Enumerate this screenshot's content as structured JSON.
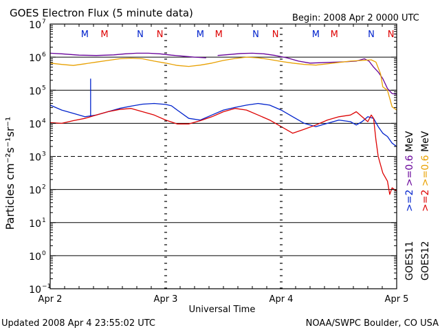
{
  "title": "GOES Electron Flux (5 minute data)",
  "begin_label": "Begin: 2008 Apr 2 0000 UTC",
  "updated_label": "Updated 2008 Apr  4 23:55:02 UTC",
  "credit_label": "NOAA/SWPC Boulder, CO USA",
  "colors": {
    "goes11_2mev": "#0022cc",
    "goes11_06mev": "#660099",
    "goes12_2mev": "#dd0000",
    "goes12_06mev": "#e8a000",
    "frame": "#000000"
  },
  "chart_data": {
    "type": "line",
    "title": "GOES Electron Flux (5 minute data)",
    "xlabel": "Universal Time",
    "ylabel": "Particles cm⁻²s⁻¹sr⁻¹",
    "yscale": "log",
    "ylim_exp": [
      -1,
      7
    ],
    "xlim_days": [
      0,
      3
    ],
    "x_tick_labels": [
      "Apr 2",
      "Apr 3",
      "Apr 4",
      "Apr 5"
    ],
    "y_tick_labels": [
      {
        "exp": 7,
        "base": "10",
        "sup": "7"
      },
      {
        "exp": 6,
        "base": "10",
        "sup": "6"
      },
      {
        "exp": 5,
        "base": "10",
        "sup": "5"
      },
      {
        "exp": 4,
        "base": "10",
        "sup": "4"
      },
      {
        "exp": 3,
        "base": "10",
        "sup": "3"
      },
      {
        "exp": 2,
        "base": "10",
        "sup": "2"
      },
      {
        "exp": 1,
        "base": "10",
        "sup": "1"
      },
      {
        "exp": 0,
        "base": "10",
        "sup": "0"
      },
      {
        "exp": -1,
        "base": "10",
        "sup": "−1"
      }
    ],
    "grid_solid_exp": [
      6,
      5,
      4,
      2,
      1,
      0
    ],
    "grid_dashed_exp": [
      3
    ],
    "markers": [
      {
        "day": 0.3,
        "label": "M",
        "color": "#0022cc"
      },
      {
        "day": 0.47,
        "label": "M",
        "color": "#dd0000"
      },
      {
        "day": 0.78,
        "label": "N",
        "color": "#0022cc"
      },
      {
        "day": 0.95,
        "label": "N",
        "color": "#dd0000"
      },
      {
        "day": 1.3,
        "label": "M",
        "color": "#0022cc"
      },
      {
        "day": 1.46,
        "label": "M",
        "color": "#dd0000"
      },
      {
        "day": 1.78,
        "label": "N",
        "color": "#0022cc"
      },
      {
        "day": 1.95,
        "label": "N",
        "color": "#dd0000"
      },
      {
        "day": 2.3,
        "label": "M",
        "color": "#0022cc"
      },
      {
        "day": 2.46,
        "label": "M",
        "color": "#dd0000"
      },
      {
        "day": 2.78,
        "label": "N",
        "color": "#0022cc"
      },
      {
        "day": 2.95,
        "label": "N",
        "color": "#dd0000"
      }
    ],
    "legend": [
      {
        "group": "GOES11",
        "items": [
          {
            "text": ">=2",
            "color": "#0022cc"
          },
          {
            "text": ">=0.6",
            "color": "#660099"
          },
          {
            "text": "MeV",
            "color": "#000000"
          }
        ]
      },
      {
        "group": "GOES12",
        "items": [
          {
            "text": ">=2",
            "color": "#dd0000"
          },
          {
            "text": ">=0.6",
            "color": "#e8a000"
          },
          {
            "text": "MeV",
            "color": "#000000"
          }
        ]
      }
    ],
    "series": [
      {
        "name": "GOES11 >=0.6 MeV",
        "color": "#660099",
        "segments": [
          [
            [
              0.0,
              6.12
            ],
            [
              0.1,
              6.1
            ],
            [
              0.25,
              6.06
            ],
            [
              0.4,
              6.05
            ],
            [
              0.55,
              6.07
            ],
            [
              0.65,
              6.1
            ],
            [
              0.75,
              6.12
            ],
            [
              0.85,
              6.12
            ],
            [
              0.95,
              6.1
            ],
            [
              1.05,
              6.06
            ],
            [
              1.15,
              6.03
            ],
            [
              1.25,
              6.0
            ],
            [
              1.35,
              5.98
            ]
          ],
          [
            [
              1.45,
              6.05
            ],
            [
              1.55,
              6.08
            ],
            [
              1.65,
              6.11
            ],
            [
              1.75,
              6.12
            ],
            [
              1.85,
              6.1
            ],
            [
              1.95,
              6.05
            ],
            [
              2.05,
              5.98
            ],
            [
              2.15,
              5.88
            ],
            [
              2.25,
              5.82
            ],
            [
              2.4,
              5.84
            ],
            [
              2.55,
              5.86
            ],
            [
              2.65,
              5.88
            ],
            [
              2.72,
              5.95
            ],
            [
              2.76,
              5.88
            ],
            [
              2.8,
              5.7
            ],
            [
              2.84,
              5.55
            ],
            [
              2.88,
              5.35
            ],
            [
              2.92,
              5.05
            ],
            [
              2.96,
              4.9
            ],
            [
              3.0,
              4.88
            ]
          ]
        ]
      },
      {
        "name": "GOES12 >=0.6 MeV",
        "color": "#e8a000",
        "segments": [
          [
            [
              0.0,
              5.82
            ],
            [
              0.1,
              5.78
            ],
            [
              0.2,
              5.75
            ],
            [
              0.3,
              5.8
            ],
            [
              0.4,
              5.85
            ],
            [
              0.5,
              5.9
            ],
            [
              0.6,
              5.95
            ],
            [
              0.7,
              5.97
            ],
            [
              0.8,
              5.95
            ],
            [
              0.9,
              5.88
            ],
            [
              1.0,
              5.82
            ],
            [
              1.1,
              5.75
            ],
            [
              1.2,
              5.72
            ],
            [
              1.3,
              5.76
            ],
            [
              1.4,
              5.82
            ],
            [
              1.5,
              5.9
            ],
            [
              1.6,
              5.96
            ],
            [
              1.7,
              6.0
            ],
            [
              1.8,
              5.98
            ],
            [
              1.9,
              5.93
            ],
            [
              2.0,
              5.87
            ],
            [
              2.1,
              5.82
            ],
            [
              2.2,
              5.78
            ],
            [
              2.3,
              5.76
            ],
            [
              2.4,
              5.8
            ],
            [
              2.5,
              5.84
            ],
            [
              2.6,
              5.88
            ],
            [
              2.7,
              5.9
            ],
            [
              2.78,
              5.92
            ],
            [
              2.82,
              5.85
            ],
            [
              2.86,
              5.5
            ],
            [
              2.88,
              5.1
            ],
            [
              2.92,
              5.0
            ],
            [
              2.96,
              4.5
            ],
            [
              3.0,
              4.4
            ]
          ]
        ]
      },
      {
        "name": "GOES11 >=2 MeV",
        "color": "#0022cc",
        "segments": [
          [
            [
              0.0,
              4.55
            ],
            [
              0.1,
              4.4
            ],
            [
              0.2,
              4.3
            ],
            [
              0.3,
              4.2
            ],
            [
              0.4,
              4.25
            ],
            [
              0.5,
              4.35
            ],
            [
              0.6,
              4.45
            ],
            [
              0.7,
              4.52
            ],
            [
              0.8,
              4.58
            ],
            [
              0.9,
              4.6
            ],
            [
              1.0,
              4.57
            ],
            [
              1.05,
              4.53
            ],
            [
              1.1,
              4.4
            ],
            [
              1.2,
              4.15
            ],
            [
              1.3,
              4.1
            ],
            [
              1.4,
              4.25
            ],
            [
              1.5,
              4.4
            ],
            [
              1.6,
              4.48
            ],
            [
              1.7,
              4.55
            ],
            [
              1.8,
              4.6
            ],
            [
              1.9,
              4.55
            ],
            [
              2.0,
              4.4
            ],
            [
              2.1,
              4.2
            ],
            [
              2.2,
              4.0
            ],
            [
              2.3,
              3.9
            ],
            [
              2.4,
              4.0
            ],
            [
              2.5,
              4.1
            ],
            [
              2.6,
              4.05
            ],
            [
              2.65,
              3.95
            ],
            [
              2.7,
              4.05
            ],
            [
              2.75,
              4.2
            ],
            [
              2.8,
              4.15
            ],
            [
              2.84,
              3.9
            ],
            [
              2.88,
              3.7
            ],
            [
              2.92,
              3.6
            ],
            [
              2.96,
              3.4
            ],
            [
              3.0,
              3.3
            ]
          ],
          [
            [
              0.35,
              4.2
            ],
            [
              0.35,
              5.35
            ]
          ]
        ]
      },
      {
        "name": "GOES12 >=2 MeV",
        "color": "#dd0000",
        "segments": [
          [
            [
              0.0,
              4.02
            ],
            [
              0.1,
              4.0
            ],
            [
              0.2,
              4.08
            ],
            [
              0.3,
              4.15
            ],
            [
              0.4,
              4.25
            ],
            [
              0.5,
              4.35
            ],
            [
              0.6,
              4.42
            ],
            [
              0.7,
              4.45
            ],
            [
              0.8,
              4.35
            ],
            [
              0.9,
              4.25
            ],
            [
              1.0,
              4.1
            ],
            [
              1.1,
              3.98
            ],
            [
              1.2,
              3.98
            ],
            [
              1.3,
              4.08
            ],
            [
              1.4,
              4.2
            ],
            [
              1.5,
              4.35
            ],
            [
              1.6,
              4.45
            ],
            [
              1.7,
              4.4
            ],
            [
              1.8,
              4.25
            ],
            [
              1.9,
              4.1
            ],
            [
              2.0,
              3.9
            ],
            [
              2.1,
              3.7
            ],
            [
              2.2,
              3.82
            ],
            [
              2.3,
              3.95
            ],
            [
              2.4,
              4.1
            ],
            [
              2.5,
              4.2
            ],
            [
              2.6,
              4.25
            ],
            [
              2.65,
              4.35
            ],
            [
              2.7,
              4.2
            ],
            [
              2.75,
              4.05
            ],
            [
              2.78,
              4.25
            ],
            [
              2.8,
              4.15
            ],
            [
              2.82,
              3.5
            ],
            [
              2.84,
              3.0
            ],
            [
              2.88,
              2.5
            ],
            [
              2.92,
              2.25
            ],
            [
              2.94,
              1.85
            ],
            [
              2.96,
              2.05
            ],
            [
              3.0,
              1.95
            ]
          ]
        ]
      }
    ]
  }
}
